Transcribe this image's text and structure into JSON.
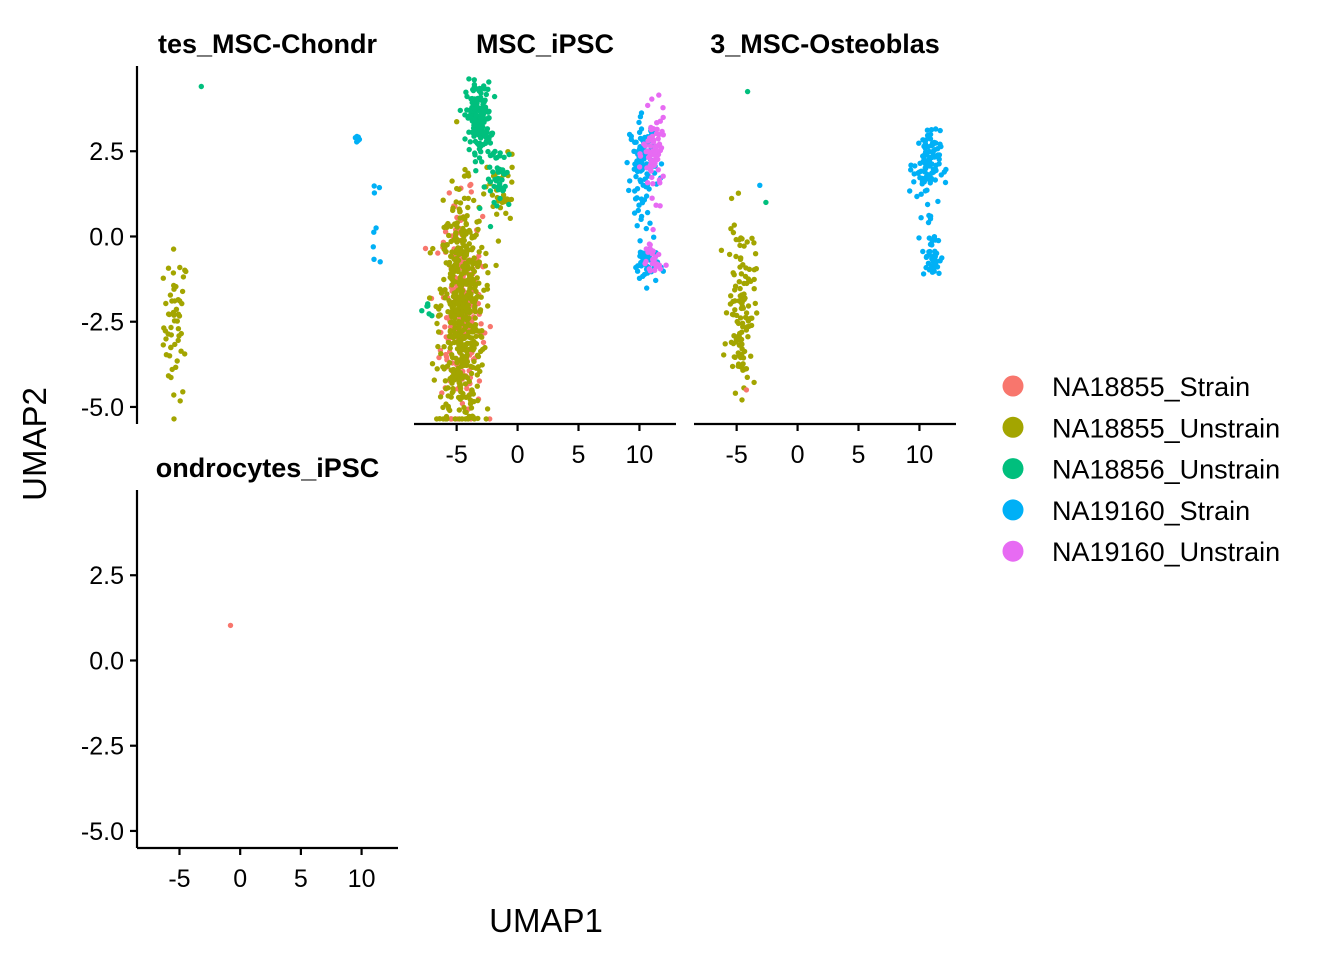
{
  "chart_data": {
    "type": "scatter",
    "xlabel": "UMAP1",
    "ylabel": "UMAP2",
    "xlim": [
      -8.5,
      13
    ],
    "ylim": [
      -5.5,
      5
    ],
    "xticks": [
      -5,
      0,
      5,
      10
    ],
    "xtick_labels": [
      "-5",
      "0",
      "5",
      "10"
    ],
    "yticks": [
      -5,
      -2.5,
      0,
      2.5
    ],
    "ytick_labels": [
      "-5.0",
      "-2.5",
      "0.0",
      "2.5"
    ],
    "legend_position": "right",
    "legend": [
      {
        "name": "NA18855_Strain",
        "color": "#F8766D"
      },
      {
        "name": "NA18855_Unstrain",
        "color": "#A3A500"
      },
      {
        "name": "NA18856_Unstrain",
        "color": "#00BF7D"
      },
      {
        "name": "NA19160_Strain",
        "color": "#00B0F6"
      },
      {
        "name": "NA19160_Unstrain",
        "color": "#E76BF3"
      }
    ],
    "facets": [
      {
        "title": "tes_MSC-Chondr",
        "show_x_axis": false,
        "show_y_axis": true,
        "clusters": [
          {
            "series": 1,
            "cx": -5.3,
            "cy": -2.6,
            "sx": 0.5,
            "sy": 1.1,
            "n": 55
          },
          {
            "series": 2,
            "cx": -3.2,
            "cy": 4.4,
            "sx": 0.05,
            "sy": 0.05,
            "n": 1
          },
          {
            "series": 3,
            "cx": 9.6,
            "cy": 2.85,
            "sx": 0.15,
            "sy": 0.05,
            "n": 10
          },
          {
            "series": 3,
            "cx": 11.2,
            "cy": 1.4,
            "sx": 0.15,
            "sy": 0.1,
            "n": 3
          },
          {
            "series": 3,
            "cx": 11.2,
            "cy": -0.5,
            "sx": 0.3,
            "sy": 0.25,
            "n": 4
          },
          {
            "series": 3,
            "cx": 11.2,
            "cy": 0.25,
            "sx": 0.05,
            "sy": 0.05,
            "n": 1
          }
        ]
      },
      {
        "title": "MSC_iPSC",
        "show_x_axis": true,
        "show_y_axis": false,
        "clusters": [
          {
            "series": 0,
            "cx": -4.6,
            "cy": -2.2,
            "sx": 0.85,
            "sy": 1.6,
            "n": 230
          },
          {
            "series": 1,
            "cx": -4.6,
            "cy": -2.2,
            "sx": 0.9,
            "sy": 1.7,
            "n": 520
          },
          {
            "series": 1,
            "cx": -1.3,
            "cy": 1.2,
            "sx": 0.6,
            "sy": 0.6,
            "n": 35
          },
          {
            "series": 2,
            "cx": -3.2,
            "cy": 3.5,
            "sx": 0.5,
            "sy": 0.5,
            "n": 170
          },
          {
            "series": 2,
            "cx": -1.4,
            "cy": 1.7,
            "sx": 0.6,
            "sy": 0.5,
            "n": 45
          },
          {
            "series": 2,
            "cx": -7.3,
            "cy": -2.2,
            "sx": 0.15,
            "sy": 0.15,
            "n": 6
          },
          {
            "series": 3,
            "cx": 10.3,
            "cy": 2.3,
            "sx": 0.55,
            "sy": 0.55,
            "n": 110
          },
          {
            "series": 3,
            "cx": 10.6,
            "cy": -0.8,
            "sx": 0.5,
            "sy": 0.3,
            "n": 45
          },
          {
            "series": 3,
            "cx": 10.2,
            "cy": 0.6,
            "sx": 0.4,
            "sy": 0.3,
            "n": 8
          },
          {
            "series": 4,
            "cx": 11.2,
            "cy": 2.4,
            "sx": 0.45,
            "sy": 0.6,
            "n": 75
          },
          {
            "series": 4,
            "cx": 11.0,
            "cy": -0.7,
            "sx": 0.4,
            "sy": 0.35,
            "n": 25
          }
        ]
      },
      {
        "title": "3_MSC-Osteoblas",
        "show_x_axis": true,
        "show_y_axis": false,
        "clusters": [
          {
            "series": 1,
            "cx": -4.6,
            "cy": -2.0,
            "sx": 0.55,
            "sy": 1.25,
            "n": 120
          },
          {
            "series": 0,
            "cx": -4.2,
            "cy": -4.5,
            "sx": 0.05,
            "sy": 0.05,
            "n": 1
          },
          {
            "series": 2,
            "cx": -4.1,
            "cy": 4.25,
            "sx": 0.05,
            "sy": 0.05,
            "n": 1
          },
          {
            "series": 2,
            "cx": -2.6,
            "cy": 1.0,
            "sx": 0.05,
            "sy": 0.05,
            "n": 1
          },
          {
            "series": 3,
            "cx": -3.1,
            "cy": 1.5,
            "sx": 0.05,
            "sy": 0.05,
            "n": 1
          },
          {
            "series": 3,
            "cx": 10.6,
            "cy": 2.1,
            "sx": 0.55,
            "sy": 0.5,
            "n": 95
          },
          {
            "series": 3,
            "cx": 11.0,
            "cy": -0.6,
            "sx": 0.4,
            "sy": 0.35,
            "n": 40
          },
          {
            "series": 3,
            "cx": 10.7,
            "cy": 0.5,
            "sx": 0.3,
            "sy": 0.15,
            "n": 5
          }
        ]
      },
      {
        "title": "ondrocytes_iPSC",
        "show_x_axis": true,
        "show_y_axis": true,
        "clusters": [
          {
            "series": 0,
            "cx": -0.8,
            "cy": 1.03,
            "sx": 0.01,
            "sy": 0.01,
            "n": 1
          }
        ]
      }
    ]
  }
}
